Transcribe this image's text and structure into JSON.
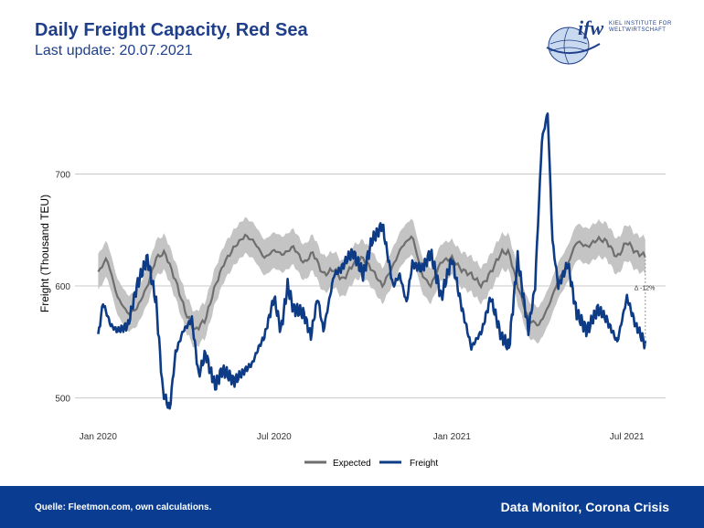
{
  "header": {
    "title": "Daily Freight Capacity, Red Sea",
    "subtitle": "Last update: 20.07.2021"
  },
  "logo": {
    "name": "ifw",
    "line1": "KIEL INSTITUTE FOR",
    "line2": "WELTWIRTSCHAFT"
  },
  "footer": {
    "source": "Quelle: Fleetmon.com, own calculations.",
    "brand": "Data Monitor, Corona Crisis"
  },
  "colors": {
    "expected": "#6e6e6e",
    "band": "#c4c4c4",
    "freight": "#0d3b85",
    "footer": "#0a3d91"
  },
  "chart_data": {
    "type": "line",
    "title": "Daily Freight Capacity, Red Sea",
    "subtitle": "Last update: 20.07.2021",
    "ylabel": "Freight (Thousand TEU)",
    "xlabel": "",
    "x_start": "2020-01-01",
    "x_end": "2021-07-20",
    "xlim": [
      "2019-12-08",
      "2021-08-10"
    ],
    "ylim": [
      476,
      782
    ],
    "y_ticks": [
      500,
      600,
      700
    ],
    "x_ticks": [
      {
        "date": "2020-01-01",
        "label": "Jan 2020"
      },
      {
        "date": "2020-07-01",
        "label": "Jul 2020"
      },
      {
        "date": "2021-01-01",
        "label": "Jan 2021"
      },
      {
        "date": "2021-07-01",
        "label": "Jul 2021"
      }
    ],
    "grid": true,
    "legend_position": "bottom",
    "annotation": {
      "text": "Δ -12%",
      "date": "2021-07-20",
      "from": 627,
      "to": 548
    },
    "series": [
      {
        "name": "Expected",
        "x": [
          "2020-01-01",
          "2020-01-10",
          "2020-01-21",
          "2020-02-01",
          "2020-02-10",
          "2020-02-21",
          "2020-03-01",
          "2020-03-10",
          "2020-03-21",
          "2020-04-01",
          "2020-04-10",
          "2020-04-21",
          "2020-05-01",
          "2020-05-10",
          "2020-05-21",
          "2020-06-01",
          "2020-06-10",
          "2020-06-21",
          "2020-07-01",
          "2020-07-10",
          "2020-07-21",
          "2020-08-01",
          "2020-08-10",
          "2020-08-21",
          "2020-09-01",
          "2020-09-10",
          "2020-09-21",
          "2020-10-01",
          "2020-10-10",
          "2020-10-21",
          "2020-11-01",
          "2020-11-10",
          "2020-11-21",
          "2020-12-01",
          "2020-12-10",
          "2020-12-21",
          "2021-01-01",
          "2021-01-10",
          "2021-01-21",
          "2021-02-01",
          "2021-02-10",
          "2021-02-21",
          "2021-03-01",
          "2021-03-10",
          "2021-03-21",
          "2021-04-01",
          "2021-04-10",
          "2021-04-21",
          "2021-05-01",
          "2021-05-10",
          "2021-05-21",
          "2021-06-01",
          "2021-06-10",
          "2021-06-21",
          "2021-07-01",
          "2021-07-10",
          "2021-07-20"
        ],
        "values": [
          612,
          625,
          590,
          575,
          580,
          600,
          625,
          630,
          605,
          575,
          560,
          570,
          600,
          620,
          635,
          645,
          640,
          625,
          632,
          628,
          635,
          620,
          630,
          610,
          615,
          605,
          620,
          625,
          615,
          600,
          618,
          635,
          645,
          610,
          600,
          622,
          625,
          615,
          610,
          600,
          612,
          630,
          630,
          600,
          570,
          565,
          580,
          605,
          620,
          640,
          635,
          642,
          640,
          625,
          640,
          630,
          627
        ],
        "band_width": 32
      },
      {
        "name": "Freight",
        "x": [
          "2020-01-01",
          "2020-01-06",
          "2020-01-14",
          "2020-01-21",
          "2020-02-01",
          "2020-02-10",
          "2020-02-21",
          "2020-03-01",
          "2020-03-08",
          "2020-03-15",
          "2020-03-21",
          "2020-03-29",
          "2020-04-07",
          "2020-04-14",
          "2020-04-21",
          "2020-05-01",
          "2020-05-08",
          "2020-05-15",
          "2020-05-21",
          "2020-06-01",
          "2020-06-08",
          "2020-06-15",
          "2020-06-21",
          "2020-07-01",
          "2020-07-08",
          "2020-07-15",
          "2020-07-21",
          "2020-08-01",
          "2020-08-08",
          "2020-08-15",
          "2020-08-21",
          "2020-09-01",
          "2020-09-08",
          "2020-09-15",
          "2020-09-21",
          "2020-10-01",
          "2020-10-10",
          "2020-10-21",
          "2020-11-01",
          "2020-11-08",
          "2020-11-15",
          "2020-11-21",
          "2020-12-01",
          "2020-12-10",
          "2020-12-21",
          "2021-01-01",
          "2021-01-10",
          "2021-01-21",
          "2021-02-01",
          "2021-02-10",
          "2021-02-21",
          "2021-03-01",
          "2021-03-10",
          "2021-03-21",
          "2021-03-28",
          "2021-04-04",
          "2021-04-10",
          "2021-04-15",
          "2021-04-21",
          "2021-05-01",
          "2021-05-10",
          "2021-05-21",
          "2021-06-01",
          "2021-06-10",
          "2021-06-21",
          "2021-07-01",
          "2021-07-10",
          "2021-07-20"
        ],
        "values": [
          555,
          585,
          565,
          560,
          565,
          600,
          625,
          585,
          505,
          490,
          540,
          560,
          570,
          520,
          540,
          510,
          525,
          520,
          515,
          525,
          530,
          545,
          555,
          590,
          560,
          600,
          580,
          575,
          555,
          590,
          560,
          610,
          615,
          625,
          630,
          610,
          640,
          655,
          600,
          610,
          585,
          620,
          615,
          630,
          590,
          625,
          585,
          545,
          560,
          590,
          555,
          545,
          625,
          560,
          600,
          730,
          755,
          640,
          600,
          620,
          575,
          560,
          580,
          570,
          550,
          590,
          565,
          548
        ]
      }
    ]
  }
}
